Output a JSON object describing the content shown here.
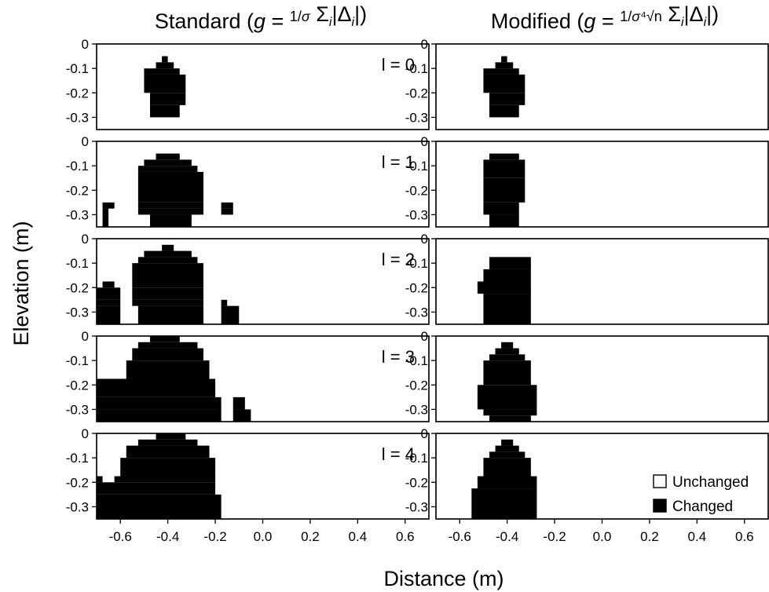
{
  "chart_data": {
    "type": "heatmap",
    "columns": [
      {
        "key": "standard",
        "title_text": "Standard",
        "formula": "g = (1/σ) Σᵢ|Δᵢ|"
      },
      {
        "key": "modified",
        "title_text": "Modified",
        "formula": "g = (1/(σ ⁴√n)) Σᵢ|Δᵢ|"
      }
    ],
    "xlabel": "Distance (m)",
    "ylabel": "Elevation (m)",
    "xlim": [
      -0.7,
      0.7
    ],
    "ylim": [
      -0.35,
      0
    ],
    "x_ticks": [
      -0.6,
      -0.4,
      -0.2,
      0.0,
      0.2,
      0.4,
      0.6
    ],
    "x_tick_labels": [
      "-0.6",
      "-0.4",
      "-0.2",
      "0.0",
      "0.2",
      "0.4",
      "0.6"
    ],
    "y_ticks": [
      0,
      -0.1,
      -0.2,
      -0.3
    ],
    "y_tick_labels": [
      "0",
      "-0.1",
      "-0.2",
      "-0.3"
    ],
    "iteration_labels": [
      "l = 0",
      "l = 1",
      "l = 2",
      "l = 3",
      "l = 4"
    ],
    "cell_size": 0.025,
    "row_note": "changed cells per row: [x_start, x_end] in metres, row y from top",
    "legend": [
      {
        "label": "Unchanged",
        "color": "#ffffff"
      },
      {
        "label": "Changed",
        "color": "#000000"
      }
    ],
    "legend_position": "bottom-right of last Modified panel",
    "grid": false,
    "panels": [
      {
        "column": "standard",
        "iteration": 0,
        "rows": [
          {
            "y_top": -0.05,
            "y_bottom": -0.075,
            "spans": [
              [
                -0.425,
                -0.4
              ]
            ]
          },
          {
            "y_top": -0.075,
            "y_bottom": -0.1,
            "spans": [
              [
                -0.45,
                -0.375
              ]
            ]
          },
          {
            "y_top": -0.1,
            "y_bottom": -0.125,
            "spans": [
              [
                -0.5,
                -0.35
              ]
            ]
          },
          {
            "y_top": -0.125,
            "y_bottom": -0.2,
            "spans": [
              [
                -0.5,
                -0.325
              ]
            ]
          },
          {
            "y_top": -0.2,
            "y_bottom": -0.25,
            "spans": [
              [
                -0.475,
                -0.325
              ]
            ]
          },
          {
            "y_top": -0.25,
            "y_bottom": -0.3,
            "spans": [
              [
                -0.475,
                -0.35
              ]
            ]
          }
        ]
      },
      {
        "column": "standard",
        "iteration": 1,
        "rows": [
          {
            "y_top": -0.05,
            "y_bottom": -0.075,
            "spans": [
              [
                -0.45,
                -0.35
              ]
            ]
          },
          {
            "y_top": -0.075,
            "y_bottom": -0.1,
            "spans": [
              [
                -0.5,
                -0.3
              ]
            ]
          },
          {
            "y_top": -0.1,
            "y_bottom": -0.125,
            "spans": [
              [
                -0.525,
                -0.275
              ]
            ]
          },
          {
            "y_top": -0.125,
            "y_bottom": -0.25,
            "spans": [
              [
                -0.525,
                -0.25
              ]
            ]
          },
          {
            "y_top": -0.25,
            "y_bottom": -0.275,
            "spans": [
              [
                -0.675,
                -0.625
              ],
              [
                -0.525,
                -0.25
              ],
              [
                -0.175,
                -0.125
              ]
            ]
          },
          {
            "y_top": -0.275,
            "y_bottom": -0.3,
            "spans": [
              [
                -0.675,
                -0.65
              ],
              [
                -0.525,
                -0.25
              ],
              [
                -0.175,
                -0.125
              ]
            ]
          },
          {
            "y_top": -0.3,
            "y_bottom": -0.35,
            "spans": [
              [
                -0.675,
                -0.65
              ],
              [
                -0.475,
                -0.3
              ]
            ]
          }
        ]
      },
      {
        "column": "standard",
        "iteration": 2,
        "rows": [
          {
            "y_top": -0.025,
            "y_bottom": -0.05,
            "spans": [
              [
                -0.425,
                -0.375
              ]
            ]
          },
          {
            "y_top": -0.05,
            "y_bottom": -0.075,
            "spans": [
              [
                -0.5,
                -0.3
              ]
            ]
          },
          {
            "y_top": -0.075,
            "y_bottom": -0.1,
            "spans": [
              [
                -0.525,
                -0.275
              ]
            ]
          },
          {
            "y_top": -0.1,
            "y_bottom": -0.175,
            "spans": [
              [
                -0.55,
                -0.25
              ]
            ]
          },
          {
            "y_top": -0.175,
            "y_bottom": -0.2,
            "spans": [
              [
                -0.675,
                -0.625
              ],
              [
                -0.55,
                -0.25
              ]
            ]
          },
          {
            "y_top": -0.2,
            "y_bottom": -0.25,
            "spans": [
              [
                -0.7,
                -0.6
              ],
              [
                -0.55,
                -0.25
              ]
            ]
          },
          {
            "y_top": -0.25,
            "y_bottom": -0.275,
            "spans": [
              [
                -0.7,
                -0.6
              ],
              [
                -0.55,
                -0.25
              ],
              [
                -0.175,
                -0.15
              ]
            ]
          },
          {
            "y_top": -0.275,
            "y_bottom": -0.35,
            "spans": [
              [
                -0.7,
                -0.6
              ],
              [
                -0.525,
                -0.25
              ],
              [
                -0.175,
                -0.1
              ]
            ]
          }
        ]
      },
      {
        "column": "standard",
        "iteration": 3,
        "rows": [
          {
            "y_top": -0.0,
            "y_bottom": -0.025,
            "spans": [
              [
                -0.475,
                -0.35
              ]
            ]
          },
          {
            "y_top": -0.025,
            "y_bottom": -0.05,
            "spans": [
              [
                -0.525,
                -0.275
              ]
            ]
          },
          {
            "y_top": -0.05,
            "y_bottom": -0.1,
            "spans": [
              [
                -0.55,
                -0.25
              ]
            ]
          },
          {
            "y_top": -0.1,
            "y_bottom": -0.175,
            "spans": [
              [
                -0.575,
                -0.225
              ]
            ]
          },
          {
            "y_top": -0.175,
            "y_bottom": -0.25,
            "spans": [
              [
                -0.7,
                -0.2
              ]
            ]
          },
          {
            "y_top": -0.25,
            "y_bottom": -0.3,
            "spans": [
              [
                -0.7,
                -0.175
              ],
              [
                -0.125,
                -0.075
              ]
            ]
          },
          {
            "y_top": -0.3,
            "y_bottom": -0.35,
            "spans": [
              [
                -0.7,
                -0.175
              ],
              [
                -0.125,
                -0.05
              ]
            ]
          }
        ]
      },
      {
        "column": "standard",
        "iteration": 4,
        "rows": [
          {
            "y_top": -0.0,
            "y_bottom": -0.025,
            "spans": [
              [
                -0.45,
                -0.325
              ]
            ]
          },
          {
            "y_top": -0.025,
            "y_bottom": -0.05,
            "spans": [
              [
                -0.525,
                -0.275
              ]
            ]
          },
          {
            "y_top": -0.05,
            "y_bottom": -0.1,
            "spans": [
              [
                -0.575,
                -0.225
              ]
            ]
          },
          {
            "y_top": -0.1,
            "y_bottom": -0.175,
            "spans": [
              [
                -0.6,
                -0.2
              ]
            ]
          },
          {
            "y_top": -0.175,
            "y_bottom": -0.2,
            "spans": [
              [
                -0.7,
                -0.675
              ],
              [
                -0.625,
                -0.2
              ]
            ]
          },
          {
            "y_top": -0.2,
            "y_bottom": -0.25,
            "spans": [
              [
                -0.7,
                -0.2
              ]
            ]
          },
          {
            "y_top": -0.25,
            "y_bottom": -0.35,
            "spans": [
              [
                -0.7,
                -0.175
              ]
            ]
          }
        ]
      },
      {
        "column": "modified",
        "iteration": 0,
        "rows": [
          {
            "y_top": -0.05,
            "y_bottom": -0.075,
            "spans": [
              [
                -0.425,
                -0.4
              ]
            ]
          },
          {
            "y_top": -0.075,
            "y_bottom": -0.1,
            "spans": [
              [
                -0.45,
                -0.375
              ]
            ]
          },
          {
            "y_top": -0.1,
            "y_bottom": -0.125,
            "spans": [
              [
                -0.5,
                -0.35
              ]
            ]
          },
          {
            "y_top": -0.125,
            "y_bottom": -0.2,
            "spans": [
              [
                -0.5,
                -0.325
              ]
            ]
          },
          {
            "y_top": -0.2,
            "y_bottom": -0.25,
            "spans": [
              [
                -0.475,
                -0.325
              ]
            ]
          },
          {
            "y_top": -0.25,
            "y_bottom": -0.3,
            "spans": [
              [
                -0.475,
                -0.35
              ]
            ]
          }
        ]
      },
      {
        "column": "modified",
        "iteration": 1,
        "rows": [
          {
            "y_top": -0.05,
            "y_bottom": -0.075,
            "spans": [
              [
                -0.475,
                -0.35
              ]
            ]
          },
          {
            "y_top": -0.075,
            "y_bottom": -0.15,
            "spans": [
              [
                -0.5,
                -0.325
              ]
            ]
          },
          {
            "y_top": -0.15,
            "y_bottom": -0.25,
            "spans": [
              [
                -0.5,
                -0.325
              ]
            ]
          },
          {
            "y_top": -0.25,
            "y_bottom": -0.3,
            "spans": [
              [
                -0.5,
                -0.35
              ]
            ]
          },
          {
            "y_top": -0.3,
            "y_bottom": -0.35,
            "spans": [
              [
                -0.475,
                -0.35
              ]
            ]
          }
        ]
      },
      {
        "column": "modified",
        "iteration": 2,
        "rows": [
          {
            "y_top": -0.075,
            "y_bottom": -0.125,
            "spans": [
              [
                -0.475,
                -0.3
              ]
            ]
          },
          {
            "y_top": -0.125,
            "y_bottom": -0.175,
            "spans": [
              [
                -0.5,
                -0.3
              ]
            ]
          },
          {
            "y_top": -0.175,
            "y_bottom": -0.225,
            "spans": [
              [
                -0.525,
                -0.3
              ]
            ]
          },
          {
            "y_top": -0.225,
            "y_bottom": -0.35,
            "spans": [
              [
                -0.5,
                -0.3
              ]
            ]
          }
        ]
      },
      {
        "column": "modified",
        "iteration": 3,
        "rows": [
          {
            "y_top": -0.025,
            "y_bottom": -0.05,
            "spans": [
              [
                -0.425,
                -0.375
              ]
            ]
          },
          {
            "y_top": -0.05,
            "y_bottom": -0.075,
            "spans": [
              [
                -0.45,
                -0.35
              ]
            ]
          },
          {
            "y_top": -0.075,
            "y_bottom": -0.1,
            "spans": [
              [
                -0.475,
                -0.325
              ]
            ]
          },
          {
            "y_top": -0.1,
            "y_bottom": -0.2,
            "spans": [
              [
                -0.5,
                -0.3
              ]
            ]
          },
          {
            "y_top": -0.2,
            "y_bottom": -0.3,
            "spans": [
              [
                -0.525,
                -0.275
              ]
            ]
          },
          {
            "y_top": -0.3,
            "y_bottom": -0.325,
            "spans": [
              [
                -0.5,
                -0.275
              ]
            ]
          },
          {
            "y_top": -0.325,
            "y_bottom": -0.35,
            "spans": [
              [
                -0.475,
                -0.3
              ]
            ]
          }
        ]
      },
      {
        "column": "modified",
        "iteration": 4,
        "rows": [
          {
            "y_top": -0.025,
            "y_bottom": -0.05,
            "spans": [
              [
                -0.425,
                -0.375
              ]
            ]
          },
          {
            "y_top": -0.05,
            "y_bottom": -0.075,
            "spans": [
              [
                -0.45,
                -0.35
              ]
            ]
          },
          {
            "y_top": -0.075,
            "y_bottom": -0.1,
            "spans": [
              [
                -0.475,
                -0.325
              ]
            ]
          },
          {
            "y_top": -0.1,
            "y_bottom": -0.175,
            "spans": [
              [
                -0.5,
                -0.3
              ]
            ]
          },
          {
            "y_top": -0.175,
            "y_bottom": -0.225,
            "spans": [
              [
                -0.525,
                -0.275
              ]
            ]
          },
          {
            "y_top": -0.225,
            "y_bottom": -0.35,
            "spans": [
              [
                -0.55,
                -0.275
              ]
            ]
          }
        ]
      }
    ]
  }
}
